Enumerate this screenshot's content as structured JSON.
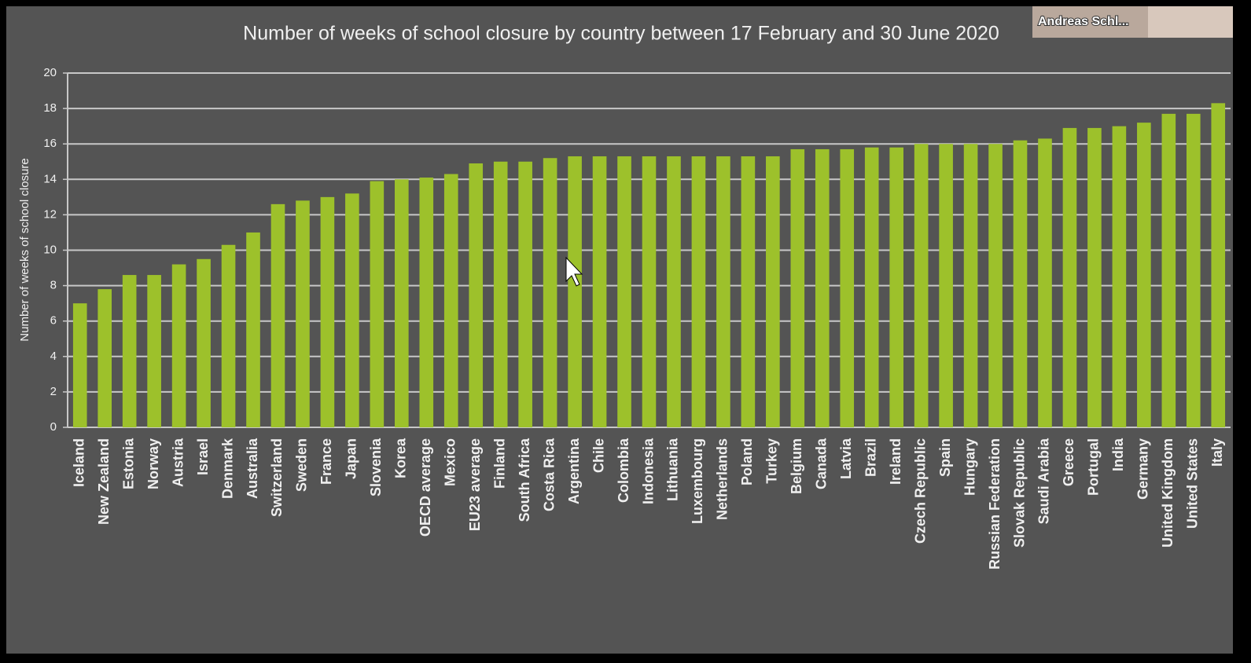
{
  "chart_data": {
    "type": "bar",
    "title": "Number of weeks of school closure by country between 17 February and 30 June 2020",
    "y_label": "Number of weeks of school closure",
    "categories": [
      "Iceland",
      "New Zealand",
      "Estonia",
      "Norway",
      "Austria",
      "Israel",
      "Denmark",
      "Australia",
      "Switzerland",
      "Sweden",
      "France",
      "Japan",
      "Slovenia",
      "Korea",
      "OECD average",
      "Mexico",
      "EU23 average",
      "Finland",
      "South Africa",
      "Costa Rica",
      "Argentina",
      "Chile",
      "Colombia",
      "Indonesia",
      "Lithuania",
      "Luxembourg",
      "Netherlands",
      "Poland",
      "Turkey",
      "Belgium",
      "Canada",
      "Latvia",
      "Brazil",
      "Ireland",
      "Czech Republic",
      "Spain",
      "Hungary",
      "Russian Federation",
      "Slovak Republic",
      "Saudi Arabia",
      "Greece",
      "Portugal",
      "India",
      "Germany",
      "United Kingdom",
      "United States",
      "Italy"
    ],
    "values": [
      7.0,
      7.8,
      8.6,
      8.6,
      9.2,
      9.5,
      10.3,
      11.0,
      12.6,
      12.8,
      13.0,
      13.2,
      13.9,
      14.0,
      14.1,
      14.3,
      14.9,
      15.0,
      15.0,
      15.2,
      15.3,
      15.3,
      15.3,
      15.3,
      15.3,
      15.3,
      15.3,
      15.3,
      15.3,
      15.7,
      15.7,
      15.7,
      15.8,
      15.8,
      16.0,
      16.0,
      16.0,
      16.0,
      16.2,
      16.3,
      16.9,
      16.9,
      17.0,
      17.2,
      17.7,
      17.7,
      18.3
    ],
    "color": "#9dc12b",
    "ylim": [
      0,
      20
    ],
    "yticks": [
      0,
      2,
      4,
      6,
      8,
      10,
      12,
      14,
      16,
      18,
      20
    ],
    "grid": true
  },
  "participant_name": "Andreas Schl..."
}
